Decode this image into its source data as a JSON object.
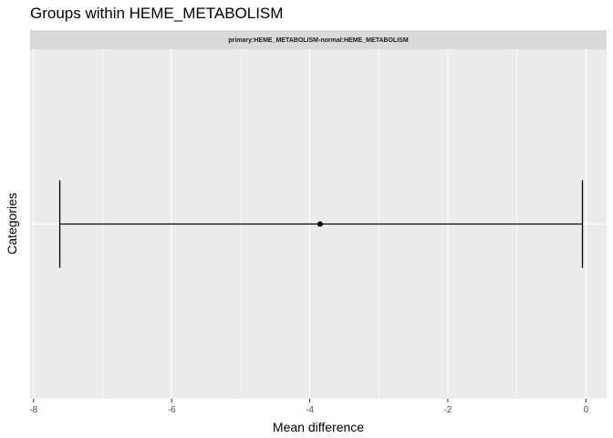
{
  "chart_data": {
    "type": "errorbar",
    "title": "Groups within HEME_METABOLISM",
    "facet_label": "primary:HEME_METABOLISM-normal:HEME_METABOLISM",
    "xlabel": "Mean difference",
    "ylabel": "Categories",
    "xlim": [
      -8.05,
      0.3
    ],
    "xticks": [
      -8,
      -6,
      -4,
      -2,
      0
    ],
    "minor_xticks": [
      -7,
      -5,
      -3,
      -1
    ],
    "grid": true,
    "categories": [
      ""
    ],
    "points": [
      {
        "category": "",
        "estimate": -3.85,
        "lower": -7.62,
        "upper": -0.05
      }
    ],
    "colors": {
      "panel_bg": "#ebebeb",
      "strip_bg": "#d9d9d9",
      "grid": "#ffffff",
      "mark": "#000000"
    }
  }
}
